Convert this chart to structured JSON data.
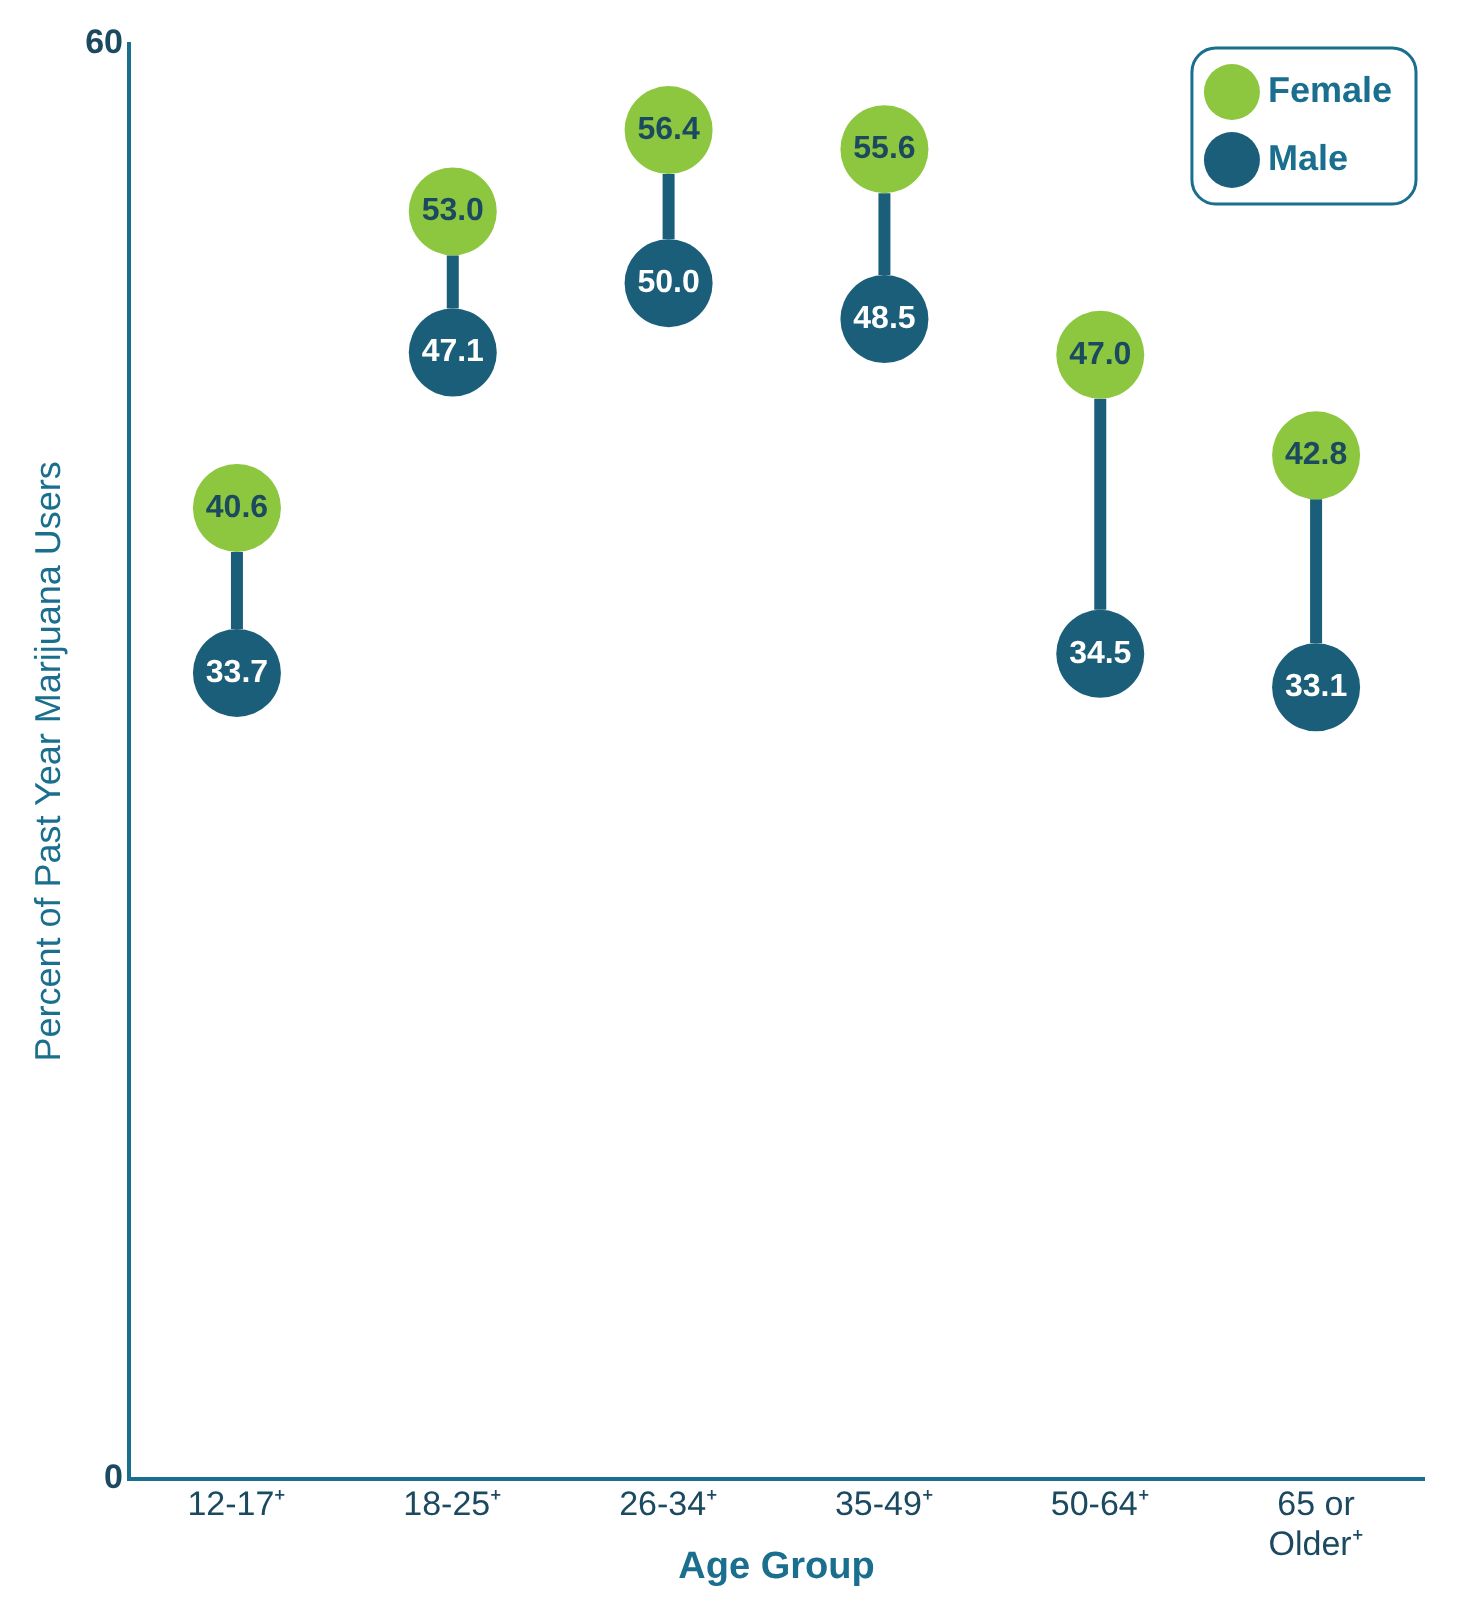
{
  "chart_data": {
    "type": "scatter",
    "xlabel": "Age Group",
    "ylabel": "Percent of Past Year Marijuana Users",
    "categories": [
      "12-17⁺",
      "18-25⁺",
      "26-34⁺",
      "35-49⁺",
      "50-64⁺",
      "65 or Older⁺"
    ],
    "series": [
      {
        "name": "Female",
        "color": "#8dc63f",
        "values": [
          40.6,
          53.0,
          56.4,
          55.6,
          47.0,
          42.8
        ],
        "value_labels": [
          "40.6",
          "53.0",
          "56.4",
          "55.6",
          "47.0",
          "42.8"
        ]
      },
      {
        "name": "Male",
        "color": "#1b5e7a",
        "values": [
          33.7,
          47.1,
          50.0,
          48.5,
          34.5,
          33.1
        ],
        "value_labels": [
          "33.7",
          "47.1",
          "50.0",
          "48.5",
          "34.5",
          "33.1"
        ]
      }
    ],
    "ylim": [
      0,
      60
    ],
    "yticks": [
      0,
      60
    ],
    "grid": false,
    "legend": "top right",
    "marker": "circle"
  }
}
